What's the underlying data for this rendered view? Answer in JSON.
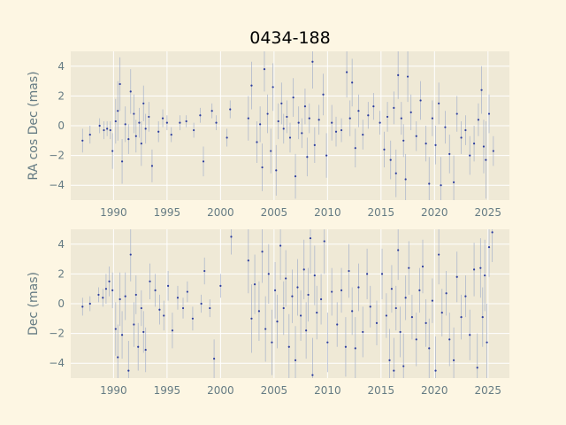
{
  "chart_data": {
    "type": "scatter",
    "title": "0434-188",
    "xlim": [
      1986.0,
      2027.0
    ],
    "x_ticks": [
      "1990",
      "1995",
      "2000",
      "2005",
      "2010",
      "2015",
      "2020",
      "2025"
    ],
    "colors": {
      "background": "#fdf6e3",
      "axes": "#efe9d6",
      "grid": "#ffffff",
      "point": "#2c3d9e",
      "error": "#9aa8c8",
      "text": "#657b83"
    },
    "panels": [
      {
        "ylabel": "RA cos Dec (mas)",
        "ylim": [
          -5,
          5
        ],
        "y_ticks": [
          "−4",
          "−2",
          "0",
          "2",
          "4"
        ],
        "points": [
          [
            1987.1,
            -1.0,
            0.8
          ],
          [
            1987.8,
            -0.6,
            0.6
          ],
          [
            1988.7,
            0.0,
            0.5
          ],
          [
            1989.1,
            -0.3,
            0.6
          ],
          [
            1989.4,
            -0.2,
            0.5
          ],
          [
            1989.7,
            -0.3,
            0.6
          ],
          [
            1989.9,
            -1.7,
            1.2
          ],
          [
            1990.2,
            0.3,
            1.5
          ],
          [
            1990.4,
            1.0,
            2.0
          ],
          [
            1990.6,
            2.8,
            1.8
          ],
          [
            1990.8,
            -2.4,
            1.5
          ],
          [
            1991.1,
            0.1,
            1.2
          ],
          [
            1991.4,
            -0.9,
            1.0
          ],
          [
            1991.6,
            2.3,
            1.5
          ],
          [
            1991.9,
            0.8,
            1.3
          ],
          [
            1992.1,
            -0.7,
            1.1
          ],
          [
            1992.4,
            0.2,
            1.0
          ],
          [
            1992.6,
            -1.2,
            1.5
          ],
          [
            1992.8,
            1.5,
            1.2
          ],
          [
            1993.0,
            -0.2,
            1.0
          ],
          [
            1993.3,
            0.6,
            1.0
          ],
          [
            1993.6,
            -2.7,
            1.1
          ],
          [
            1994.2,
            -0.4,
            0.7
          ],
          [
            1994.6,
            0.5,
            0.6
          ],
          [
            1995.0,
            0.2,
            0.5
          ],
          [
            1995.4,
            -0.6,
            0.5
          ],
          [
            1996.2,
            0.2,
            0.5
          ],
          [
            1996.8,
            0.3,
            0.4
          ],
          [
            1997.5,
            -0.3,
            0.5
          ],
          [
            1998.1,
            0.7,
            0.5
          ],
          [
            1998.4,
            -2.4,
            1.0
          ],
          [
            1999.2,
            1.0,
            0.5
          ],
          [
            1999.6,
            0.2,
            0.5
          ],
          [
            2000.6,
            -0.8,
            0.6
          ],
          [
            2000.9,
            1.1,
            0.6
          ],
          [
            2002.6,
            0.5,
            1.5
          ],
          [
            2002.9,
            2.7,
            1.6
          ],
          [
            2003.4,
            -1.1,
            1.4
          ],
          [
            2003.7,
            0.1,
            1.2
          ],
          [
            2003.9,
            -2.8,
            1.6
          ],
          [
            2004.1,
            3.8,
            1.5
          ],
          [
            2004.4,
            0.8,
            1.3
          ],
          [
            2004.7,
            -1.7,
            1.5
          ],
          [
            2004.9,
            2.6,
            1.6
          ],
          [
            2005.2,
            -3.0,
            1.7
          ],
          [
            2005.4,
            0.3,
            1.2
          ],
          [
            2005.7,
            1.5,
            1.4
          ],
          [
            2005.9,
            -0.2,
            1.0
          ],
          [
            2006.2,
            0.6,
            1.1
          ],
          [
            2006.5,
            -0.8,
            1.0
          ],
          [
            2006.8,
            1.9,
            1.3
          ],
          [
            2007.0,
            -3.4,
            1.5
          ],
          [
            2007.3,
            0.2,
            1.1
          ],
          [
            2007.6,
            -0.5,
            1.0
          ],
          [
            2007.9,
            1.3,
            1.2
          ],
          [
            2008.1,
            -2.1,
            1.3
          ],
          [
            2008.3,
            0.5,
            1.0
          ],
          [
            2008.6,
            4.3,
            1.8
          ],
          [
            2008.8,
            -1.3,
            1.2
          ],
          [
            2009.2,
            0.4,
            1.0
          ],
          [
            2009.6,
            2.1,
            1.4
          ],
          [
            2009.9,
            -2.0,
            1.5
          ],
          [
            2010.4,
            0.2,
            1.2
          ],
          [
            2010.8,
            -0.4,
            1.0
          ],
          [
            2011.3,
            -0.3,
            0.8
          ],
          [
            2011.8,
            3.6,
            1.7
          ],
          [
            2012.1,
            0.5,
            1.2
          ],
          [
            2012.3,
            2.9,
            1.6
          ],
          [
            2012.6,
            -1.5,
            1.3
          ],
          [
            2012.9,
            1.0,
            1.1
          ],
          [
            2013.3,
            -0.6,
            1.0
          ],
          [
            2013.8,
            0.7,
            0.9
          ],
          [
            2014.3,
            1.3,
            0.9
          ],
          [
            2014.9,
            0.2,
            0.8
          ],
          [
            2015.3,
            -1.6,
            1.2
          ],
          [
            2015.6,
            0.6,
            1.0
          ],
          [
            2015.9,
            -2.3,
            1.3
          ],
          [
            2016.2,
            1.2,
            1.1
          ],
          [
            2016.4,
            -3.2,
            1.6
          ],
          [
            2016.6,
            3.4,
            1.6
          ],
          [
            2016.9,
            0.5,
            1.1
          ],
          [
            2017.1,
            -1.0,
            1.1
          ],
          [
            2017.3,
            -3.6,
            1.7
          ],
          [
            2017.5,
            3.3,
            1.7
          ],
          [
            2017.8,
            0.9,
            1.2
          ],
          [
            2018.3,
            -0.7,
            1.0
          ],
          [
            2018.7,
            1.7,
            1.3
          ],
          [
            2019.2,
            -1.2,
            1.2
          ],
          [
            2019.5,
            -3.9,
            1.8
          ],
          [
            2019.8,
            0.5,
            1.2
          ],
          [
            2020.1,
            -1.3,
            1.3
          ],
          [
            2020.4,
            1.5,
            1.4
          ],
          [
            2020.6,
            -4.0,
            1.9
          ],
          [
            2021.0,
            -0.1,
            1.1
          ],
          [
            2021.4,
            -1.9,
            1.3
          ],
          [
            2021.8,
            -3.8,
            1.8
          ],
          [
            2022.1,
            0.8,
            1.2
          ],
          [
            2022.5,
            -0.8,
            1.1
          ],
          [
            2022.9,
            -0.3,
            1.0
          ],
          [
            2023.3,
            -2.0,
            1.3
          ],
          [
            2023.7,
            -1.2,
            1.2
          ],
          [
            2024.1,
            0.4,
            1.1
          ],
          [
            2024.4,
            2.4,
            1.6
          ],
          [
            2024.6,
            -1.4,
            1.8
          ],
          [
            2024.8,
            -2.3,
            2.6
          ],
          [
            2025.1,
            0.8,
            1.3
          ],
          [
            2025.5,
            -1.7,
            1.0
          ]
        ]
      },
      {
        "ylabel": "Dec (mas)",
        "ylim": [
          -5,
          5
        ],
        "y_ticks": [
          "−4",
          "−2",
          "0",
          "2",
          "4"
        ],
        "points": [
          [
            1987.1,
            -0.2,
            0.6
          ],
          [
            1987.8,
            0.0,
            0.5
          ],
          [
            1988.6,
            0.6,
            0.5
          ],
          [
            1989.0,
            0.4,
            0.6
          ],
          [
            1989.3,
            1.0,
            1.0
          ],
          [
            1989.6,
            1.5,
            1.0
          ],
          [
            1989.9,
            0.9,
            1.2
          ],
          [
            1990.2,
            -1.7,
            1.8
          ],
          [
            1990.4,
            -3.6,
            2.2
          ],
          [
            1990.6,
            0.3,
            1.8
          ],
          [
            1990.8,
            -2.1,
            1.6
          ],
          [
            1991.1,
            0.5,
            1.6
          ],
          [
            1991.4,
            -4.5,
            2.0
          ],
          [
            1991.6,
            3.3,
            1.8
          ],
          [
            1991.9,
            -1.4,
            1.5
          ],
          [
            1992.1,
            0.6,
            1.3
          ],
          [
            1992.3,
            -2.9,
            1.6
          ],
          [
            1992.6,
            -0.3,
            1.2
          ],
          [
            1992.8,
            -1.9,
            1.4
          ],
          [
            1993.0,
            -3.1,
            1.5
          ],
          [
            1993.4,
            1.5,
            1.2
          ],
          [
            1993.9,
            0.9,
            1.1
          ],
          [
            1994.3,
            -0.4,
            1.0
          ],
          [
            1994.7,
            -0.8,
            1.0
          ],
          [
            1995.1,
            1.2,
            1.0
          ],
          [
            1995.5,
            -1.8,
            1.2
          ],
          [
            1996.0,
            0.4,
            0.8
          ],
          [
            1996.5,
            -0.3,
            0.7
          ],
          [
            1996.9,
            0.8,
            0.7
          ],
          [
            1997.4,
            -1.0,
            0.8
          ],
          [
            1998.2,
            0.0,
            0.6
          ],
          [
            1998.5,
            2.2,
            0.9
          ],
          [
            1999.0,
            -0.3,
            0.6
          ],
          [
            1999.4,
            -3.7,
            1.3
          ],
          [
            2000.0,
            1.2,
            0.8
          ],
          [
            2001.0,
            4.5,
            1.2
          ],
          [
            2002.6,
            2.9,
            2.2
          ],
          [
            2002.9,
            -1.0,
            2.3
          ],
          [
            2003.2,
            1.3,
            2.0
          ],
          [
            2003.6,
            -0.5,
            2.0
          ],
          [
            2003.9,
            3.5,
            2.1
          ],
          [
            2004.2,
            -1.7,
            2.2
          ],
          [
            2004.5,
            2.0,
            2.0
          ],
          [
            2004.8,
            -2.6,
            2.2
          ],
          [
            2005.1,
            0.9,
            1.9
          ],
          [
            2005.3,
            -1.2,
            1.8
          ],
          [
            2005.6,
            3.9,
            2.3
          ],
          [
            2005.9,
            -0.3,
            1.8
          ],
          [
            2006.1,
            1.7,
            1.9
          ],
          [
            2006.4,
            -2.9,
            2.2
          ],
          [
            2006.7,
            0.5,
            1.8
          ],
          [
            2007.0,
            -3.8,
            2.3
          ],
          [
            2007.2,
            1.1,
            1.9
          ],
          [
            2007.5,
            -0.8,
            1.7
          ],
          [
            2007.8,
            2.3,
            2.0
          ],
          [
            2008.0,
            -1.8,
            1.9
          ],
          [
            2008.2,
            0.6,
            1.8
          ],
          [
            2008.4,
            4.4,
            2.4
          ],
          [
            2008.6,
            -4.8,
            2.5
          ],
          [
            2008.8,
            1.9,
            2.0
          ],
          [
            2009.0,
            -0.6,
            1.8
          ],
          [
            2009.4,
            0.3,
            1.7
          ],
          [
            2009.7,
            4.2,
            2.2
          ],
          [
            2010.0,
            -2.6,
            2.0
          ],
          [
            2010.4,
            0.8,
            1.6
          ],
          [
            2010.9,
            -1.4,
            1.5
          ],
          [
            2011.3,
            0.9,
            1.5
          ],
          [
            2011.7,
            -2.9,
            2.0
          ],
          [
            2012.0,
            2.2,
            1.8
          ],
          [
            2012.3,
            -0.5,
            1.6
          ],
          [
            2012.6,
            -3.0,
            2.1
          ],
          [
            2012.9,
            1.1,
            1.6
          ],
          [
            2013.3,
            -1.9,
            1.7
          ],
          [
            2013.7,
            2.0,
            1.7
          ],
          [
            2014.0,
            -0.2,
            1.4
          ],
          [
            2014.6,
            -1.3,
            1.5
          ],
          [
            2015.1,
            2.0,
            1.7
          ],
          [
            2015.5,
            -0.8,
            1.5
          ],
          [
            2015.8,
            -3.8,
            2.1
          ],
          [
            2016.0,
            1.0,
            1.6
          ],
          [
            2016.2,
            -4.5,
            2.2
          ],
          [
            2016.4,
            -0.3,
            1.5
          ],
          [
            2016.6,
            3.6,
            2.0
          ],
          [
            2016.8,
            -1.9,
            1.7
          ],
          [
            2017.1,
            -4.2,
            2.2
          ],
          [
            2017.3,
            0.4,
            1.5
          ],
          [
            2017.6,
            2.4,
            1.8
          ],
          [
            2017.9,
            -0.9,
            1.5
          ],
          [
            2018.3,
            -2.4,
            1.8
          ],
          [
            2018.6,
            0.9,
            1.5
          ],
          [
            2018.9,
            2.5,
            1.8
          ],
          [
            2019.2,
            -1.3,
            1.6
          ],
          [
            2019.5,
            -3.0,
            2.0
          ],
          [
            2019.8,
            0.2,
            1.5
          ],
          [
            2020.1,
            -4.5,
            2.3
          ],
          [
            2020.4,
            3.3,
            2.0
          ],
          [
            2020.7,
            -0.6,
            1.6
          ],
          [
            2021.1,
            0.7,
            1.5
          ],
          [
            2021.4,
            -2.4,
            1.8
          ],
          [
            2021.8,
            -3.8,
            2.2
          ],
          [
            2022.1,
            1.8,
            1.7
          ],
          [
            2022.5,
            -0.9,
            1.5
          ],
          [
            2022.9,
            0.5,
            1.4
          ],
          [
            2023.3,
            -2.1,
            1.7
          ],
          [
            2023.7,
            2.3,
            1.8
          ],
          [
            2024.0,
            -4.3,
            2.3
          ],
          [
            2024.3,
            2.4,
            2.0
          ],
          [
            2024.5,
            -0.9,
            2.0
          ],
          [
            2024.7,
            1.9,
            2.4
          ],
          [
            2024.9,
            -2.6,
            2.6
          ],
          [
            2025.1,
            3.8,
            2.0
          ],
          [
            2025.4,
            4.8,
            2.0
          ]
        ]
      }
    ]
  }
}
